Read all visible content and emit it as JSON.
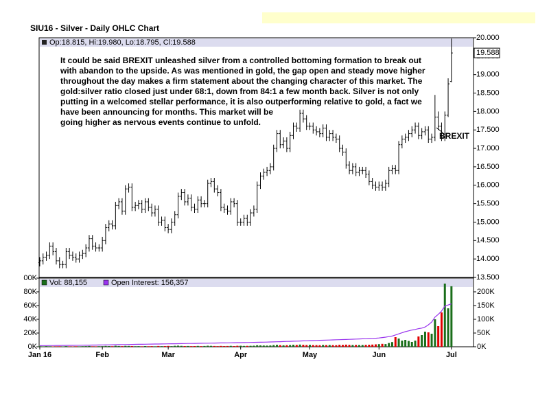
{
  "chart_data": {
    "type": "ohlc",
    "title": "SIU16 - Silver - Daily OHLC Chart",
    "ohlc_label": "Op:18.815, Hi:19.980, Lo:18.795, Cl:19.588",
    "volume_label": "Vol: 88,155",
    "oi_label": "Open Interest: 156,357",
    "event_label": "BREXIT",
    "annotation_lines": [
      "It could be said BREXIT unleashed silver from a controlled bottoming formation to break out",
      "with abandon to the upside.  As was mentioned in gold, the gap open and steady move higher",
      "throughout the day makes a firm statement about the changing character of this market.  The",
      "gold:silver ratio closed just under 68:1, down from 84:1 a few month back.  Silver is not only",
      "putting in a welcomed stellar performance, it is also outperforming relative to gold, a fact we",
      "have been announcing for months.  This market will be",
      "going higher as nervous events continue to unfold."
    ],
    "bar_color": "#000000",
    "up_color": "#1a6e1a",
    "down_color": "#e00000",
    "oi_color": "#9933ee",
    "xlim": [
      -0.2,
      131.7
    ],
    "xticks": [
      {
        "value": 0,
        "label": "Jan 16"
      },
      {
        "value": 19,
        "label": "Feb"
      },
      {
        "value": 39,
        "label": "Mar"
      },
      {
        "value": 61,
        "label": "Apr"
      },
      {
        "value": 82,
        "label": "May"
      },
      {
        "value": 103,
        "label": "Jun"
      },
      {
        "value": 125,
        "label": "Jul"
      }
    ],
    "ylim": [
      13.5,
      20
    ],
    "yticks": [
      {
        "value": 13.5,
        "label": "13.500"
      },
      {
        "value": 14,
        "label": "14.000"
      },
      {
        "value": 14.5,
        "label": "14.500"
      },
      {
        "value": 15,
        "label": "15.000"
      },
      {
        "value": 15.5,
        "label": "15.500"
      },
      {
        "value": 16,
        "label": "16.000"
      },
      {
        "value": 16.5,
        "label": "16.500"
      },
      {
        "value": 17,
        "label": "17.000"
      },
      {
        "value": 17.5,
        "label": "17.500"
      },
      {
        "value": 18,
        "label": "18.000"
      },
      {
        "value": 18.5,
        "label": "18.500"
      },
      {
        "value": 19,
        "label": "19.000"
      },
      {
        "value": 19.5,
        "label": "19.500"
      },
      {
        "value": 20,
        "label": "20.000"
      }
    ],
    "vlim": [
      0,
      100000
    ],
    "vticks": [
      {
        "value": 0,
        "label": "0K"
      },
      {
        "value": 20000,
        "label": "20K"
      },
      {
        "value": 40000,
        "label": "40K"
      },
      {
        "value": 60000,
        "label": "60K"
      },
      {
        "value": 80000,
        "label": "80K"
      },
      {
        "value": 100000,
        "label": "00K"
      }
    ],
    "y2lim": [
      0,
      250000
    ],
    "y2ticks": [
      {
        "value": 0,
        "label": "0K"
      },
      {
        "value": 50000,
        "label": "50K"
      },
      {
        "value": 100000,
        "label": "100K"
      },
      {
        "value": 150000,
        "label": "150K"
      },
      {
        "value": 200000,
        "label": "200K"
      }
    ],
    "open": [
      13.9,
      13.95,
      14.05,
      14.1,
      14.35,
      14.2,
      13.95,
      13.85,
      13.85,
      14.2,
      14.1,
      14.05,
      14.0,
      14.1,
      14.15,
      14.3,
      14.55,
      14.35,
      14.3,
      14.3,
      14.5,
      14.85,
      14.95,
      14.9,
      15.45,
      15.55,
      15.3,
      15.9,
      15.95,
      15.4,
      15.45,
      15.5,
      15.35,
      15.55,
      15.4,
      15.25,
      15.35,
      15.0,
      15.05,
      14.85,
      14.8,
      15.0,
      15.2,
      15.7,
      15.8,
      15.55,
      15.65,
      15.4,
      15.35,
      15.6,
      15.5,
      15.5,
      16.05,
      16.1,
      15.9,
      15.8,
      15.4,
      15.35,
      15.3,
      15.55,
      15.5,
      15.0,
      15.0,
      15.1,
      15.0,
      15.25,
      15.35,
      16.0,
      16.25,
      16.35,
      16.4,
      16.5,
      17.0,
      17.4,
      17.1,
      17.2,
      17.0,
      17.35,
      17.6,
      17.55,
      17.95,
      17.8,
      17.6,
      17.6,
      17.5,
      17.45,
      17.4,
      17.55,
      17.3,
      17.4,
      17.3,
      17.25,
      17.0,
      16.9,
      16.55,
      16.4,
      16.5,
      16.35,
      16.4,
      16.4,
      16.3,
      16.1,
      16.0,
      15.95,
      16.0,
      15.95,
      16.05,
      16.4,
      16.45,
      16.4,
      17.1,
      17.25,
      17.3,
      17.4,
      17.5,
      17.6,
      17.35,
      17.45,
      17.5,
      17.25,
      17.3,
      17.85,
      17.6,
      17.3,
      17.9,
      18.815
    ],
    "high": [
      14.05,
      14.15,
      14.2,
      14.45,
      14.45,
      14.3,
      14.05,
      13.95,
      14.3,
      14.3,
      14.2,
      14.15,
      14.2,
      14.25,
      14.4,
      14.65,
      14.65,
      14.45,
      14.4,
      14.6,
      14.95,
      15.05,
      15.05,
      15.55,
      15.65,
      15.65,
      16.0,
      16.05,
      16.05,
      15.55,
      15.6,
      15.6,
      15.65,
      15.65,
      15.5,
      15.45,
      15.45,
      15.15,
      15.15,
      14.95,
      15.1,
      15.3,
      15.8,
      15.9,
      15.9,
      15.75,
      15.75,
      15.5,
      15.7,
      15.7,
      15.6,
      16.15,
      16.2,
      16.2,
      16.0,
      15.9,
      15.5,
      15.45,
      15.65,
      15.65,
      15.6,
      15.1,
      15.2,
      15.2,
      15.35,
      15.45,
      16.1,
      16.35,
      16.45,
      16.5,
      16.6,
      17.1,
      17.5,
      17.5,
      17.3,
      17.3,
      17.45,
      17.7,
      17.7,
      18.05,
      18.05,
      17.9,
      17.7,
      17.7,
      17.6,
      17.55,
      17.65,
      17.65,
      17.5,
      17.5,
      17.4,
      17.35,
      17.1,
      17.0,
      16.65,
      16.6,
      16.6,
      16.5,
      16.5,
      16.5,
      16.4,
      16.2,
      16.1,
      16.1,
      16.1,
      16.15,
      16.5,
      16.55,
      16.55,
      17.2,
      17.35,
      17.4,
      17.5,
      17.6,
      17.7,
      17.7,
      17.55,
      17.6,
      17.6,
      17.4,
      18.45,
      18.0,
      17.7,
      18.0,
      18.9,
      19.98
    ],
    "low": [
      13.8,
      13.85,
      13.95,
      14.0,
      14.1,
      13.85,
      13.75,
      13.75,
      13.75,
      14.0,
      13.95,
      13.9,
      13.9,
      14.0,
      14.05,
      14.2,
      14.25,
      14.2,
      14.2,
      14.2,
      14.4,
      14.75,
      14.8,
      14.8,
      15.35,
      15.2,
      15.2,
      15.8,
      15.3,
      15.3,
      15.35,
      15.25,
      15.25,
      15.3,
      15.15,
      15.15,
      14.9,
      14.9,
      14.75,
      14.7,
      14.7,
      14.9,
      15.1,
      15.6,
      15.45,
      15.45,
      15.3,
      15.25,
      15.25,
      15.4,
      15.4,
      15.4,
      15.95,
      15.8,
      15.7,
      15.3,
      15.25,
      15.2,
      15.2,
      15.4,
      14.9,
      14.9,
      14.9,
      14.9,
      14.9,
      15.15,
      15.25,
      15.9,
      16.15,
      16.25,
      16.3,
      16.4,
      16.9,
      17.0,
      17.0,
      16.9,
      16.9,
      17.25,
      17.45,
      17.45,
      17.7,
      17.5,
      17.5,
      17.4,
      17.35,
      17.3,
      17.3,
      17.2,
      17.2,
      17.2,
      17.15,
      16.9,
      16.8,
      16.45,
      16.3,
      16.3,
      16.25,
      16.25,
      16.3,
      16.2,
      16.0,
      15.9,
      15.85,
      15.85,
      15.85,
      15.85,
      15.95,
      16.3,
      16.3,
      16.3,
      17.0,
      17.15,
      17.2,
      17.3,
      17.4,
      17.25,
      17.25,
      17.35,
      17.15,
      17.15,
      17.2,
      17.5,
      17.2,
      17.2,
      17.85,
      18.795
    ],
    "close": [
      13.95,
      14.05,
      14.1,
      14.35,
      14.2,
      13.95,
      13.85,
      13.85,
      14.2,
      14.1,
      14.05,
      14.0,
      14.1,
      14.15,
      14.3,
      14.55,
      14.35,
      14.3,
      14.3,
      14.5,
      14.85,
      14.95,
      14.9,
      15.45,
      15.55,
      15.3,
      15.9,
      15.95,
      15.4,
      15.45,
      15.5,
      15.35,
      15.55,
      15.4,
      15.25,
      15.35,
      15.0,
      15.05,
      14.85,
      14.8,
      15.0,
      15.2,
      15.7,
      15.8,
      15.55,
      15.65,
      15.4,
      15.35,
      15.6,
      15.5,
      15.5,
      16.05,
      16.1,
      15.9,
      15.8,
      15.4,
      15.35,
      15.3,
      15.55,
      15.5,
      15.0,
      15.0,
      15.1,
      15.0,
      15.25,
      15.35,
      16.0,
      16.25,
      16.35,
      16.4,
      16.5,
      17.0,
      17.4,
      17.1,
      17.2,
      17.0,
      17.35,
      17.6,
      17.55,
      17.95,
      17.8,
      17.6,
      17.6,
      17.5,
      17.45,
      17.4,
      17.55,
      17.3,
      17.4,
      17.3,
      17.25,
      17.0,
      16.9,
      16.55,
      16.4,
      16.5,
      16.35,
      16.4,
      16.4,
      16.3,
      16.1,
      16.0,
      15.95,
      16.0,
      15.95,
      16.05,
      16.4,
      16.45,
      16.4,
      17.1,
      17.25,
      17.3,
      17.4,
      17.5,
      17.6,
      17.35,
      17.45,
      17.5,
      17.25,
      17.3,
      17.85,
      17.6,
      17.3,
      17.9,
      18.75,
      19.588
    ],
    "volume": [
      800,
      600,
      900,
      700,
      500,
      650,
      700,
      400,
      900,
      600,
      500,
      700,
      600,
      800,
      900,
      1100,
      700,
      600,
      800,
      900,
      1200,
      1000,
      800,
      1500,
      1100,
      900,
      1300,
      1200,
      1000,
      800,
      900,
      700,
      1000,
      800,
      900,
      700,
      1100,
      900,
      1000,
      1200,
      900,
      1400,
      1600,
      1300,
      1000,
      1100,
      900,
      1000,
      1200,
      900,
      1100,
      1500,
      1300,
      1100,
      900,
      1200,
      1000,
      1100,
      1300,
      1000,
      1400,
      1500,
      1200,
      1300,
      1400,
      1600,
      2200,
      2000,
      1800,
      1700,
      1900,
      2500,
      2800,
      2400,
      2100,
      2300,
      2600,
      3000,
      2700,
      3200,
      2900,
      2600,
      2800,
      2500,
      2400,
      2300,
      2700,
      2500,
      2600,
      2400,
      2300,
      2900,
      2700,
      3100,
      2800,
      2600,
      2700,
      2500,
      2600,
      2800,
      3000,
      3200,
      3500,
      3800,
      4200,
      3900,
      5500,
      6800,
      14000,
      12000,
      9000,
      10000,
      8500,
      7000,
      9000,
      15000,
      17000,
      22000,
      21000,
      19000,
      40000,
      30000,
      50000,
      92000,
      56000,
      88155
    ],
    "open_interest": [
      4000,
      4200,
      4300,
      4500,
      4600,
      4700,
      4800,
      5000,
      5100,
      5200,
      5300,
      5500,
      5600,
      5800,
      5900,
      6000,
      6200,
      6300,
      6500,
      6700,
      6900,
      7100,
      7300,
      7500,
      7700,
      7900,
      8100,
      8300,
      8500,
      8700,
      8900,
      9100,
      9300,
      9500,
      9700,
      9900,
      10100,
      10300,
      10500,
      10700,
      10900,
      11100,
      11300,
      11500,
      11700,
      11900,
      12100,
      12300,
      12500,
      12700,
      12900,
      13100,
      13300,
      13500,
      13700,
      13900,
      14100,
      14300,
      14500,
      14700,
      14900,
      15100,
      15300,
      15500,
      15700,
      15900,
      16200,
      16500,
      16800,
      17100,
      17400,
      17800,
      18200,
      18600,
      19000,
      19400,
      19800,
      20200,
      20600,
      21000,
      21400,
      21800,
      22200,
      22600,
      23000,
      23400,
      23800,
      24200,
      24600,
      25000,
      25400,
      25800,
      26200,
      26600,
      27000,
      27500,
      28000,
      28500,
      29000,
      29500,
      30000,
      30500,
      31000,
      32000,
      33500,
      35000,
      37000,
      39000,
      43000,
      47000,
      51000,
      55000,
      58000,
      61000,
      63000,
      66000,
      68000,
      72000,
      80000,
      90000,
      108000,
      118000,
      130000,
      148000,
      152000,
      156357
    ]
  }
}
